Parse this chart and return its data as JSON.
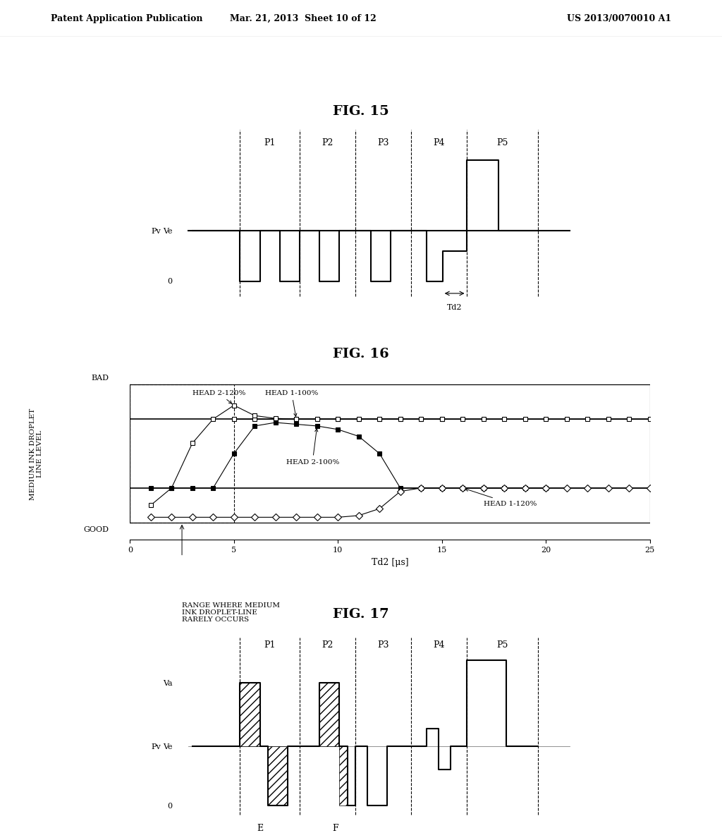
{
  "header_left": "Patent Application Publication",
  "header_mid": "Mar. 21, 2013  Sheet 10 of 12",
  "header_right": "US 2013/0070010 A1",
  "fig15_title": "FIG. 15",
  "fig16_title": "FIG. 16",
  "fig17_title": "FIG. 17",
  "background": "#ffffff"
}
